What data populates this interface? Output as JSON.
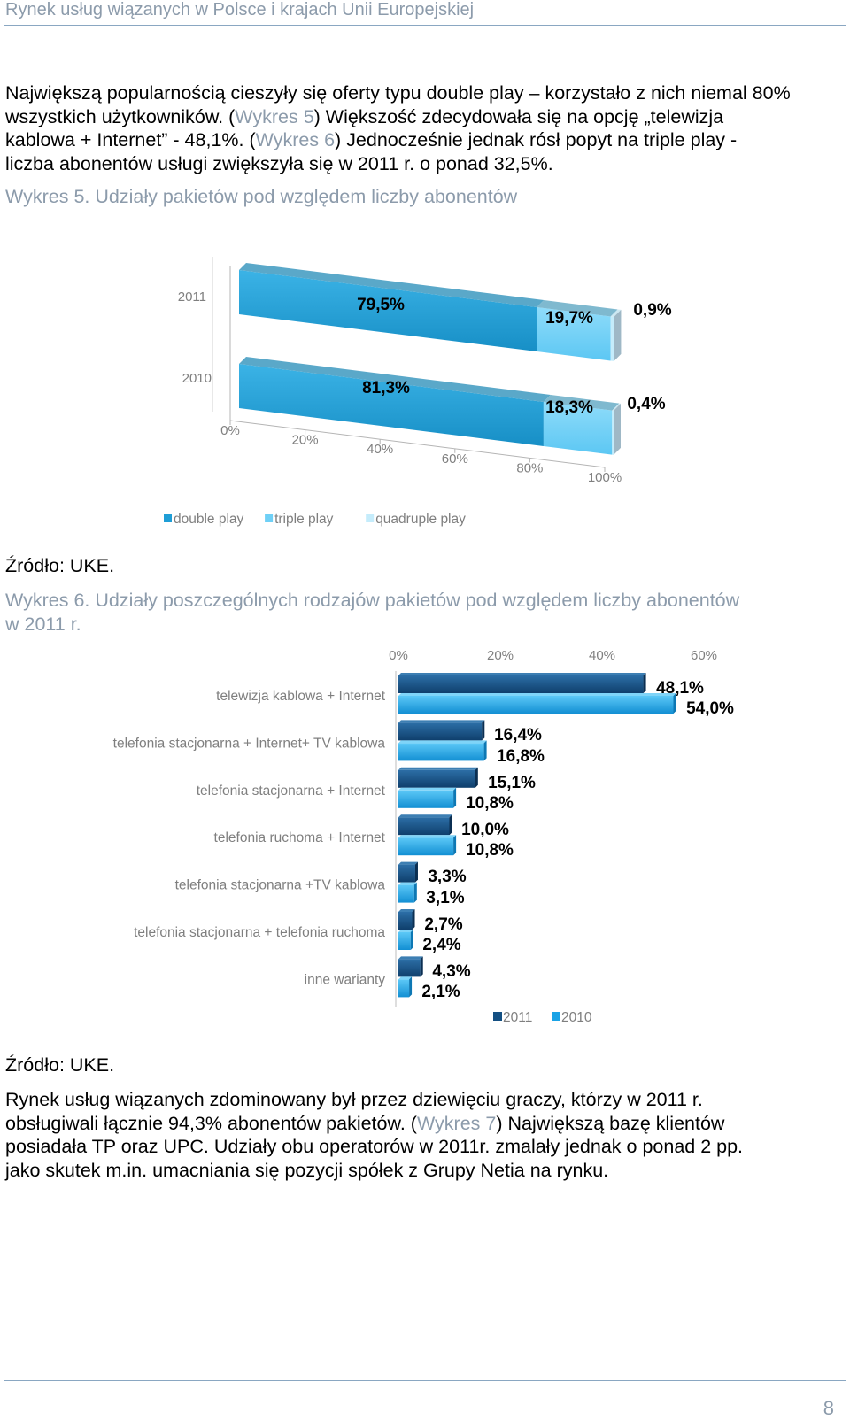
{
  "header": {
    "title": "Rynek usług wiązanych w Polsce i krajach Unii Europejskiej"
  },
  "paragraph1": {
    "line1": "Największą popularnością cieszyły się oferty typu double play – korzystało z nich niemal 80%",
    "line2_a": "wszystkich użytkowników. (",
    "line2_ref": "Wykres 5",
    "line2_b": ") Większość zdecydowała się na opcję „telewizja",
    "line3_a": "kablowa + Internet” - 48,1%. (",
    "line3_ref": "Wykres 6",
    "line3_b": ") Jednocześnie jednak rósł popyt na triple play -",
    "line4": "liczba abonentów usługi zwiększyła się w 2011 r. o ponad 32,5%."
  },
  "caption5": "Wykres 5. Udziały pakietów pod względem liczby abonentów",
  "source5": "Źródło: UKE.",
  "caption6": {
    "line1": "Wykres 6. Udziały poszczególnych rodzajów pakietów pod względem liczby abonentów",
    "line2": "w 2011 r."
  },
  "source6": "Źródło: UKE.",
  "paragraph2": {
    "line1": "Rynek usług wiązanych zdominowany był przez dziewięciu graczy, którzy w 2011 r.",
    "line2_a": "obsługiwali łącznie 94,3% abonentów pakietów. (",
    "line2_ref": "Wykres 7",
    "line2_b": ") Największą bazę klientów",
    "line3": "posiadała TP oraz UPC. Udziały obu operatorów w 2011r. zmalały jednak o ponad 2 pp.",
    "line4": "jako skutek m.in. umacniania się pozycji spółek z Grupy Netia na rynku."
  },
  "page_number": "8",
  "chart_data": [
    {
      "type": "bar",
      "orientation": "horizontal-stacked-100",
      "categories": [
        "2011",
        "2010"
      ],
      "series": [
        {
          "name": "double play",
          "values": [
            79.5,
            81.3
          ],
          "labels": [
            "79,5%",
            "81,3%"
          ],
          "color": "#1f9ed6"
        },
        {
          "name": "triple play",
          "values": [
            19.7,
            18.3
          ],
          "labels": [
            "19,7%",
            "18,3%"
          ],
          "color": "#6fd0f6"
        },
        {
          "name": "quadruple play",
          "values": [
            0.9,
            0.4
          ],
          "labels": [
            "0,9%",
            "0,4%"
          ],
          "color": "#c5ecfb"
        }
      ],
      "xticks": [
        "0%",
        "20%",
        "40%",
        "60%",
        "80%",
        "100%"
      ],
      "xlim": [
        0,
        100
      ],
      "legend": "bottom"
    },
    {
      "type": "bar",
      "orientation": "horizontal-grouped",
      "categories": [
        "telewizja kablowa + Internet",
        "telefonia stacjonarna + Internet+ TV kablowa",
        "telefonia stacjonarna + Internet",
        "telefonia ruchoma + Internet",
        "telefonia stacjonarna +TV kablowa",
        "telefonia stacjonarna + telefonia ruchoma",
        "inne warianty"
      ],
      "series": [
        {
          "name": "2011",
          "values": [
            48.1,
            16.4,
            15.1,
            10.0,
            3.3,
            2.7,
            4.3
          ],
          "labels": [
            "48,1%",
            "16,4%",
            "15,1%",
            "10,0%",
            "3,3%",
            "2,7%",
            "4,3%"
          ],
          "color": "#134f82"
        },
        {
          "name": "2010",
          "values": [
            54.0,
            16.8,
            10.8,
            10.8,
            3.1,
            2.4,
            2.1
          ],
          "labels": [
            "54,0%",
            "16,8%",
            "10,8%",
            "10,8%",
            "3,1%",
            "2,4%",
            "2,1%"
          ],
          "color": "#1aa3e6"
        }
      ],
      "xticks": [
        "0%",
        "20%",
        "40%",
        "60%"
      ],
      "xlim": [
        0,
        60
      ],
      "legend": "bottom"
    }
  ]
}
